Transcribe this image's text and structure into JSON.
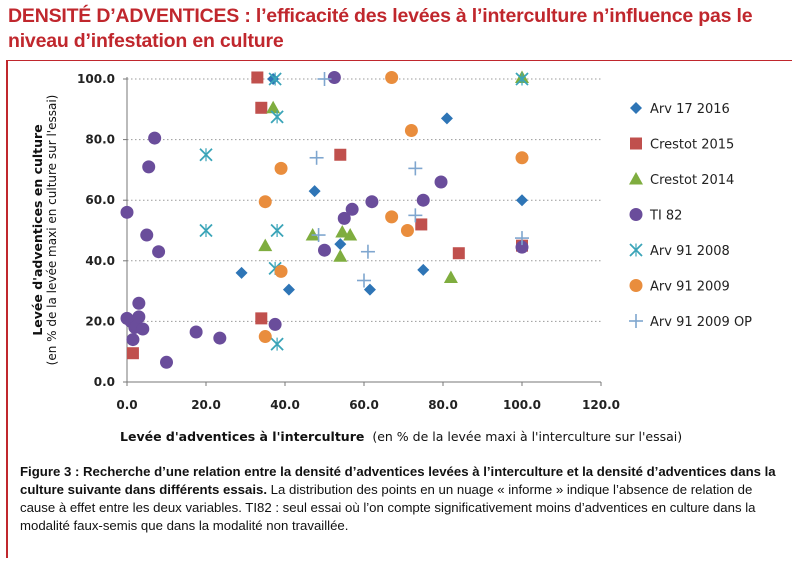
{
  "header": {
    "title_bold": "DENSITÉ D’ADVENTICES :",
    "title_rest": "l’efficacité des levées à l’interculture n’influence pas le niveau d’infestation en culture"
  },
  "caption": {
    "bold": "Figure 3 : Recherche d’une relation entre la densité d’adventices levées à l’interculture et la densité d’adventices dans la culture suivante dans différents essais.",
    "rest": "La distribution des points en un nuage « informe » indique l’absence de relation de cause à effet entre les deux variables. TI82 : seul essai où l’on compte significativement moins d’adventices en culture dans la modalité faux-semis que dans la modalité non travaillée."
  },
  "chart_data": {
    "type": "scatter",
    "xlabel_bold": "Levée d'adventices à l'interculture",
    "xlabel_rest": "(en % de la levée maxi à l'interculture sur l'essai)",
    "ylabel_bold": "Levée d'adventices en culture",
    "ylabel_rest": "(en % de la levée maxi en culture sur l'essai)",
    "xlim": [
      0,
      120
    ],
    "ylim": [
      0,
      100
    ],
    "xticks": [
      "0.0",
      "20.0",
      "40.0",
      "60.0",
      "80.0",
      "100.0",
      "120.0"
    ],
    "yticks": [
      "0.0",
      "20.0",
      "40.0",
      "60.0",
      "80.0",
      "100.0"
    ],
    "grid": "horizontal dotted",
    "legend_placement": "right",
    "series": [
      {
        "name": "Arv 17 2016",
        "marker": "diamond",
        "color": "#2e75b6",
        "points": [
          [
            29,
            36
          ],
          [
            37,
            100
          ],
          [
            41,
            30.5
          ],
          [
            47.5,
            63
          ],
          [
            54,
            45.5
          ],
          [
            61.5,
            30.5
          ],
          [
            75,
            37
          ],
          [
            81,
            87
          ],
          [
            100,
            60
          ]
        ]
      },
      {
        "name": "Crestot 2015",
        "marker": "square",
        "color": "#c0504d",
        "points": [
          [
            1.5,
            9.5
          ],
          [
            33,
            100.5
          ],
          [
            34,
            90.5
          ],
          [
            34,
            21
          ],
          [
            54,
            75
          ],
          [
            74.5,
            52
          ],
          [
            84,
            42.5
          ],
          [
            100,
            45
          ]
        ]
      },
      {
        "name": "Crestot 2014",
        "marker": "triangle",
        "color": "#7fad3f",
        "points": [
          [
            35,
            45
          ],
          [
            37,
            90.5
          ],
          [
            47,
            48.5
          ],
          [
            54,
            41.5
          ],
          [
            54.5,
            49.5
          ],
          [
            56.5,
            48.5
          ],
          [
            82,
            34.5
          ],
          [
            100,
            100.5
          ]
        ]
      },
      {
        "name": "TI 82",
        "marker": "circle",
        "color": "#6a4d9b",
        "points": [
          [
            0,
            56
          ],
          [
            0,
            21
          ],
          [
            1,
            20
          ],
          [
            1.5,
            14
          ],
          [
            2,
            18
          ],
          [
            2.5,
            18.5
          ],
          [
            3,
            21.5
          ],
          [
            3,
            26
          ],
          [
            4,
            17.5
          ],
          [
            5,
            48.5
          ],
          [
            5.5,
            71
          ],
          [
            7,
            80.5
          ],
          [
            8,
            43
          ],
          [
            10,
            6.5
          ],
          [
            17.5,
            16.5
          ],
          [
            23.5,
            14.5
          ],
          [
            37.5,
            19
          ],
          [
            50,
            43.5
          ],
          [
            52.5,
            100.5
          ],
          [
            55,
            54
          ],
          [
            57,
            57
          ],
          [
            62,
            59.5
          ],
          [
            75,
            60
          ],
          [
            79.5,
            66
          ],
          [
            100,
            44.5
          ]
        ]
      },
      {
        "name": "Arv 91 2008",
        "marker": "x",
        "color": "#3aa4b8",
        "points": [
          [
            20,
            75
          ],
          [
            20,
            50
          ],
          [
            37.5,
            37.5
          ],
          [
            37.5,
            100
          ],
          [
            38,
            87.5
          ],
          [
            38,
            50
          ],
          [
            38,
            12.5
          ],
          [
            100,
            100
          ]
        ]
      },
      {
        "name": "Arv 91 2009",
        "marker": "circle",
        "color": "#e98d3d",
        "points": [
          [
            35,
            59.5
          ],
          [
            35,
            15
          ],
          [
            39,
            70.5
          ],
          [
            39,
            36.5
          ],
          [
            67,
            54.5
          ],
          [
            67,
            100.5
          ],
          [
            71,
            50
          ],
          [
            72,
            83
          ],
          [
            100,
            74
          ]
        ]
      },
      {
        "name": "Arv 91 2009 OP",
        "marker": "plus",
        "color": "#7fa6cf",
        "points": [
          [
            48,
            74
          ],
          [
            48.5,
            48.5
          ],
          [
            50,
            100
          ],
          [
            60,
            33.5
          ],
          [
            61,
            43
          ],
          [
            73,
            70.5
          ],
          [
            73,
            55
          ],
          [
            100,
            47.5
          ]
        ]
      }
    ]
  }
}
